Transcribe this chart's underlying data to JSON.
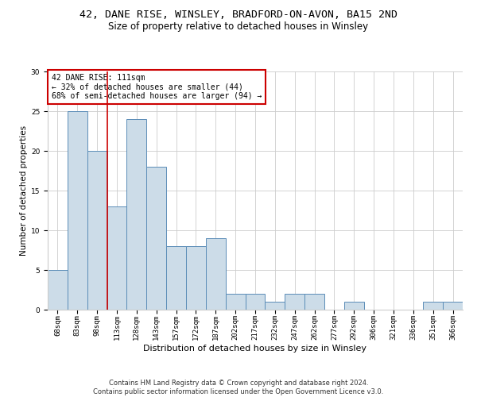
{
  "title1": "42, DANE RISE, WINSLEY, BRADFORD-ON-AVON, BA15 2ND",
  "title2": "Size of property relative to detached houses in Winsley",
  "xlabel": "Distribution of detached houses by size in Winsley",
  "ylabel": "Number of detached properties",
  "categories": [
    "68sqm",
    "83sqm",
    "98sqm",
    "113sqm",
    "128sqm",
    "143sqm",
    "157sqm",
    "172sqm",
    "187sqm",
    "202sqm",
    "217sqm",
    "232sqm",
    "247sqm",
    "262sqm",
    "277sqm",
    "292sqm",
    "306sqm",
    "321sqm",
    "336sqm",
    "351sqm",
    "366sqm"
  ],
  "values": [
    5,
    25,
    20,
    13,
    24,
    18,
    8,
    8,
    9,
    2,
    2,
    1,
    2,
    2,
    0,
    1,
    0,
    0,
    0,
    1,
    1
  ],
  "bar_color": "#ccdce8",
  "bar_edge_color": "#5b8db8",
  "red_line_x": 2.5,
  "annotation_text": "42 DANE RISE: 111sqm\n← 32% of detached houses are smaller (44)\n68% of semi-detached houses are larger (94) →",
  "annotation_box_color": "#ffffff",
  "annotation_box_edge": "#cc0000",
  "ylim": [
    0,
    30
  ],
  "grid_color": "#cccccc",
  "footer_text": "Contains HM Land Registry data © Crown copyright and database right 2024.\nContains public sector information licensed under the Open Government Licence v3.0.",
  "bg_color": "#ffffff",
  "title1_fontsize": 9.5,
  "title2_fontsize": 8.5,
  "xlabel_fontsize": 8,
  "ylabel_fontsize": 7.5,
  "tick_fontsize": 6.5,
  "footer_fontsize": 6,
  "annot_fontsize": 7
}
